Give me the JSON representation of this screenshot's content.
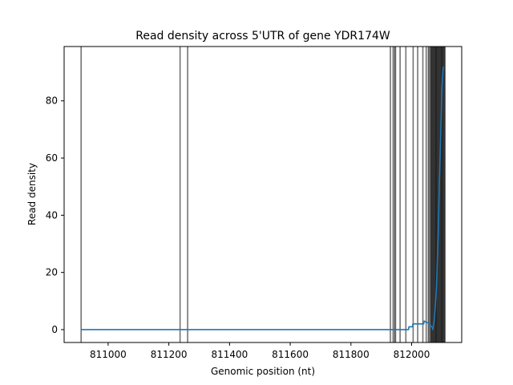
{
  "chart_data": {
    "type": "line",
    "title": "Read density across 5'UTR of gene YDR174W",
    "xlabel": "Genomic position (nt)",
    "ylabel": "Read density",
    "xlim": [
      810855,
      812165
    ],
    "ylim": [
      -4.5,
      99
    ],
    "xticks": [
      811000,
      811200,
      811400,
      811600,
      811800,
      812000
    ],
    "yticks": [
      0,
      20,
      40,
      60,
      80
    ],
    "grid": false,
    "legend": "none",
    "line_color": "#1f77b4",
    "vline_color": "#000000",
    "series": [
      {
        "x": [
          810911,
          811990,
          811991,
          812003,
          812004,
          812018,
          812019,
          812040,
          812041,
          812060,
          812065,
          812067,
          812070,
          812074,
          812078,
          812082,
          812085,
          812088,
          812091,
          812095,
          812100,
          812104
        ],
        "y": [
          0,
          0,
          1,
          1,
          2,
          2,
          2,
          2,
          3,
          2,
          1,
          1,
          0,
          3,
          8,
          15,
          25,
          35,
          50,
          65,
          85,
          92
        ]
      }
    ],
    "vlines": [
      810911,
      811237,
      811262,
      811930,
      811939,
      811944,
      811947,
      811962,
      811981,
      812005,
      812020,
      812037,
      812048,
      812055,
      812058,
      812062,
      812064,
      812066,
      812068,
      812070,
      812072,
      812074,
      812076,
      812078,
      812080,
      812081,
      812083,
      812085,
      812087,
      812089,
      812091,
      812093,
      812095,
      812097,
      812099,
      812100,
      812102,
      812104,
      812106,
      812108,
      812110
    ]
  }
}
